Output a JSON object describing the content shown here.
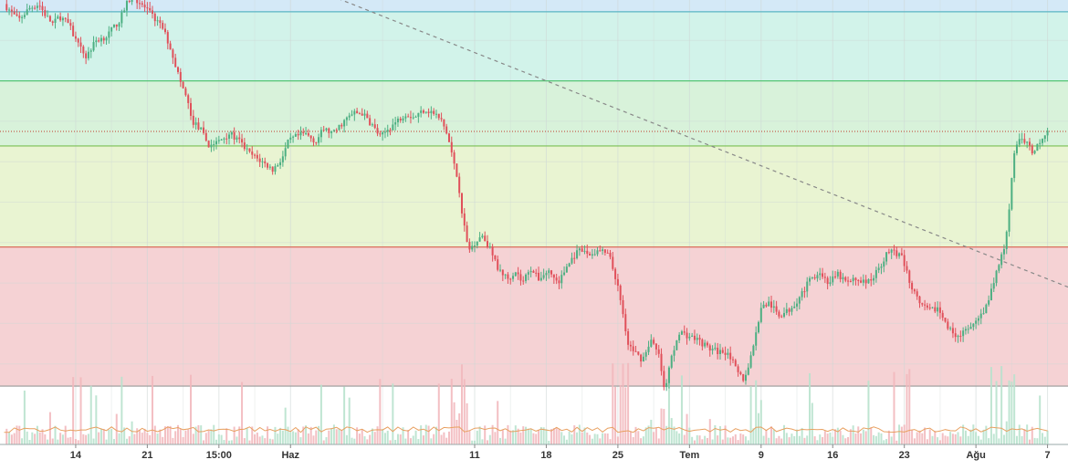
{
  "colors": {
    "up": "#4caf82",
    "down": "#e0505a",
    "vol_up": "#b8e2cd",
    "vol_down": "#f2b8bd",
    "zone_top": "#d4e9f7",
    "zone_2": "#d2f3ea",
    "zone_3": "#d8f2da",
    "zone_4": "#e9f4d2",
    "zone_5": "#f5d2d4",
    "grid": "#cfd8d6",
    "trendline": "#888888",
    "volume_ma": "#e8a060",
    "axis_text": "#333333"
  },
  "chart_data": {
    "type": "candlestick",
    "title": "",
    "x_axis": {
      "tick_labels": [
        "14",
        "21",
        "15:00",
        "Haz",
        "11",
        "18",
        "25",
        "Tem",
        "9",
        "16",
        "23",
        "Ağu",
        "7"
      ],
      "tick_days": [
        14,
        21,
        28,
        35,
        53,
        60,
        67,
        74,
        81,
        88,
        95,
        102,
        109
      ],
      "range_days": [
        6.6,
        111
      ]
    },
    "y_axis": {
      "range": [
        0,
        100
      ],
      "labels_visible": false
    },
    "grid": true,
    "fib_levels": [
      {
        "level": 97.1,
        "color": "#5bb5c4"
      },
      {
        "level": 80.0,
        "color": "#55c575"
      },
      {
        "level": 63.9,
        "color": "#7abf53"
      },
      {
        "level": 38.9,
        "color": "#d9604f"
      },
      {
        "level": 4.5,
        "color": "#999999"
      }
    ],
    "current_price_line": 67.5,
    "trendline": {
      "start": [
        37,
        103
      ],
      "end": [
        112,
        28
      ]
    },
    "volume_ma_level": 6.5,
    "keypoints": [
      [
        7,
        99
      ],
      [
        8.4,
        95
      ],
      [
        9.5,
        98
      ],
      [
        10.4,
        99
      ],
      [
        11.1,
        96
      ],
      [
        11.8,
        94
      ],
      [
        12.4,
        96
      ],
      [
        13.3,
        94
      ],
      [
        14.2,
        89
      ],
      [
        15.0,
        86
      ],
      [
        16.0,
        90
      ],
      [
        17.0,
        91
      ],
      [
        18.3,
        95
      ],
      [
        19.0,
        99
      ],
      [
        19.5,
        101
      ],
      [
        20.4,
        99
      ],
      [
        21.5,
        96
      ],
      [
        22.5,
        93
      ],
      [
        23.3,
        88
      ],
      [
        24.2,
        80
      ],
      [
        24.8,
        76
      ],
      [
        25.4,
        70
      ],
      [
        26.2,
        68
      ],
      [
        27.0,
        64
      ],
      [
        28.0,
        65
      ],
      [
        29.0,
        67
      ],
      [
        30.0,
        65
      ],
      [
        31.0,
        62
      ],
      [
        32.2,
        60
      ],
      [
        33.3,
        58
      ],
      [
        34.2,
        61
      ],
      [
        34.8,
        65
      ],
      [
        35.4,
        66
      ],
      [
        36.4,
        67
      ],
      [
        37.5,
        65
      ],
      [
        38.2,
        68
      ],
      [
        39.2,
        67
      ],
      [
        40.2,
        70
      ],
      [
        41.2,
        72
      ],
      [
        42.0,
        72
      ],
      [
        43.0,
        69
      ],
      [
        43.8,
        66
      ],
      [
        44.5,
        68
      ],
      [
        45.4,
        70
      ],
      [
        46.2,
        72
      ],
      [
        47.1,
        71
      ],
      [
        48.1,
        73
      ],
      [
        49.0,
        72
      ],
      [
        49.8,
        70
      ],
      [
        50.4,
        66
      ],
      [
        50.9,
        60
      ],
      [
        51.4,
        55
      ],
      [
        51.9,
        45
      ],
      [
        52.4,
        38
      ],
      [
        53.0,
        40
      ],
      [
        53.7,
        42
      ],
      [
        54.4,
        39
      ],
      [
        55.2,
        34
      ],
      [
        56.2,
        31
      ],
      [
        57.0,
        33
      ],
      [
        57.7,
        30
      ],
      [
        58.4,
        34
      ],
      [
        59.2,
        31
      ],
      [
        60.2,
        33
      ],
      [
        61.2,
        30
      ],
      [
        62.0,
        34
      ],
      [
        62.8,
        37
      ],
      [
        63.4,
        38
      ],
      [
        64.2,
        37
      ],
      [
        65.2,
        38
      ],
      [
        66.1,
        37
      ],
      [
        66.8,
        31
      ],
      [
        67.4,
        24
      ],
      [
        68.0,
        15
      ],
      [
        68.6,
        13
      ],
      [
        69.4,
        11
      ],
      [
        70.2,
        16
      ],
      [
        71.0,
        12
      ],
      [
        71.6,
        3
      ],
      [
        72.2,
        11
      ],
      [
        73.0,
        18
      ],
      [
        73.8,
        17
      ],
      [
        74.8,
        16
      ],
      [
        75.8,
        14
      ],
      [
        76.8,
        13
      ],
      [
        77.8,
        13
      ],
      [
        78.6,
        8
      ],
      [
        79.4,
        6
      ],
      [
        80.2,
        14
      ],
      [
        81.0,
        24
      ],
      [
        81.8,
        25
      ],
      [
        82.7,
        22
      ],
      [
        83.6,
        23
      ],
      [
        84.6,
        26
      ],
      [
        85.6,
        30
      ],
      [
        86.6,
        33
      ],
      [
        87.6,
        30
      ],
      [
        88.5,
        32
      ],
      [
        89.4,
        30
      ],
      [
        90.4,
        31
      ],
      [
        91.4,
        30
      ],
      [
        92.4,
        33
      ],
      [
        93.2,
        37
      ],
      [
        94.0,
        38
      ],
      [
        94.8,
        36
      ],
      [
        95.6,
        30
      ],
      [
        96.4,
        25
      ],
      [
        97.4,
        23
      ],
      [
        98.2,
        24
      ],
      [
        99.2,
        19
      ],
      [
        100.2,
        17
      ],
      [
        101.0,
        18
      ],
      [
        102.0,
        20
      ],
      [
        103.0,
        24
      ],
      [
        103.6,
        29
      ],
      [
        104.2,
        35
      ],
      [
        104.8,
        38
      ],
      [
        105.3,
        50
      ],
      [
        105.7,
        62
      ],
      [
        106.2,
        66
      ],
      [
        107.0,
        65
      ],
      [
        107.6,
        62
      ],
      [
        108.2,
        65
      ],
      [
        109.0,
        68
      ]
    ]
  }
}
